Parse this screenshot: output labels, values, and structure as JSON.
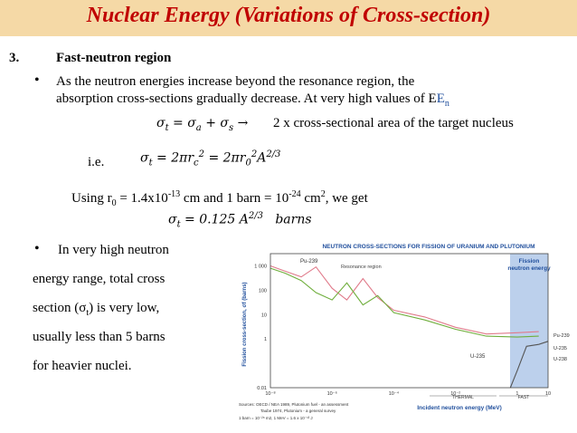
{
  "title": "Nuclear Energy (Variations of Cross-section)",
  "section": {
    "number": "3.",
    "heading": "Fast-neutron region"
  },
  "bullet1": {
    "line1": "As the neutron energies increase beyond the resonance region, the",
    "line2": "absorption cross-sections gradually decrease. At very high values of E",
    "line2_sub": "n"
  },
  "eq1": {
    "sigma": "σ",
    "t": "t",
    "eqs": "= σ",
    "a": "a",
    "plus": "+ σ",
    "s": "s",
    "arrow": "→",
    "text": "2 x cross-sectional area of the target nucleus"
  },
  "eq2": {
    "ie": "i.e.",
    "sigma": "σ",
    "t": "t",
    "part1": "= 2πr",
    "c": "c",
    "sq": "2",
    "part2": "= 2πr",
    "zero": "0",
    "sq2": "2",
    "A": "A",
    "exp": "2/3"
  },
  "using": {
    "p1": "Using r",
    "sub0": "0",
    "p2": " = 1.4x10",
    "exp1": "-13",
    "p3": " cm and 1 barn = 10",
    "exp2": "-24",
    "p4": " cm",
    "exp3": "2",
    "p5": ", we get"
  },
  "eq3": {
    "sigma": "σ",
    "t": "t",
    "value": "= 0.125 A",
    "exp": "2/3",
    "unit": "barns"
  },
  "bullet2": {
    "l1": "In very high neutron",
    "l2": "energy range, total cross",
    "l3a": "section (σ",
    "l3sub": "t",
    "l3b": ") is very low,",
    "l4": "usually less than 5 barns",
    "l5": "for heavier nuclei."
  },
  "chart_data": {
    "type": "line",
    "title": "NEUTRON CROSS-SECTIONS FOR FISSION OF URANIUM AND PLUTONIUM",
    "xlabel": "Incident neutron energy (MeV)",
    "ylabel": "Fission cross-section, σf (barns)",
    "x_ticks": [
      "10⁻⁸",
      "10⁻⁶",
      "10⁻⁴",
      "10⁻²",
      "1",
      "10"
    ],
    "y_ticks": [
      "1 000",
      "100",
      "10",
      "1",
      "0.01"
    ],
    "log_x": true,
    "log_y": true,
    "annotations": [
      "Resonance region",
      "Fission neutron energy",
      "THERMAL",
      "FAST"
    ],
    "series": [
      {
        "name": "Pu-239",
        "color": "#e07a8a",
        "x": [
          1e-08,
          3e-08,
          1e-07,
          3e-07,
          1e-06,
          3e-06,
          1e-05,
          3e-05,
          0.0001,
          0.001,
          0.01,
          0.1,
          1,
          5
        ],
        "y": [
          1000,
          600,
          350,
          900,
          120,
          40,
          300,
          50,
          15,
          8,
          3,
          1.6,
          1.8,
          2
        ]
      },
      {
        "name": "U-235",
        "color": "#6fae3c",
        "x": [
          1e-08,
          3e-08,
          1e-07,
          3e-07,
          1e-06,
          3e-06,
          1e-05,
          3e-05,
          0.0001,
          0.001,
          0.01,
          0.1,
          1,
          5
        ],
        "y": [
          800,
          500,
          250,
          80,
          40,
          200,
          25,
          60,
          12,
          6,
          2.5,
          1.3,
          1.2,
          1.3
        ]
      },
      {
        "name": "U-238",
        "color": "#555555",
        "x": [
          0.6,
          1,
          2,
          5,
          10
        ],
        "y": [
          0.01,
          0.05,
          0.5,
          0.6,
          0.8
        ]
      }
    ]
  },
  "chart_source": {
    "l1": "Sources: OECD / NEA 1989, Plutonium fuel - an assessment",
    "l2": "Taube 1974, Plutonium - a general survey",
    "l3": "1 barn = 10⁻²⁸ m2, 1 MeV = 1.6 x 10⁻¹³ J"
  }
}
